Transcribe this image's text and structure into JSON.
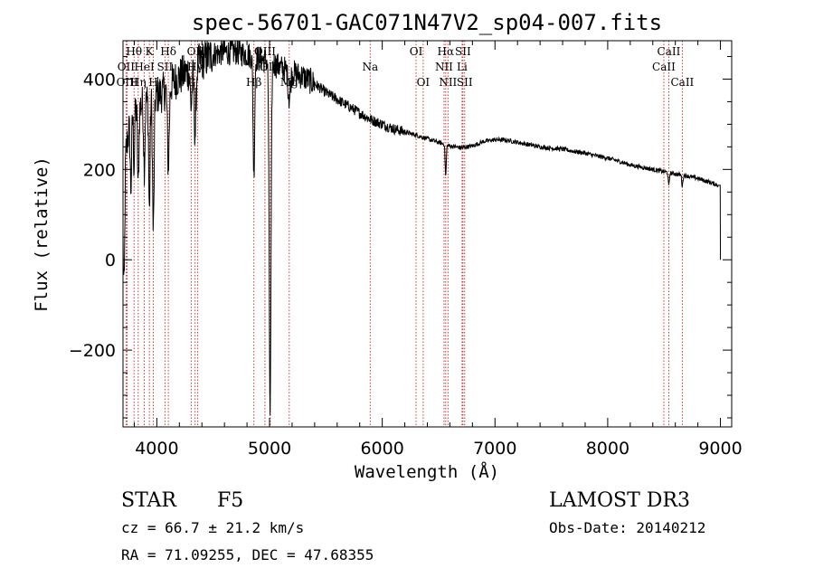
{
  "chart_data": {
    "type": "line",
    "title": "spec-56701-GAC071N47V2_sp04-007.fits",
    "xlabel": "Wavelength (Å)",
    "ylabel": "Flux (relative)",
    "xlim": [
      3700,
      9100
    ],
    "ylim": [
      -370,
      485
    ],
    "xticks": [
      4000,
      5000,
      6000,
      7000,
      8000,
      9000
    ],
    "yticks": [
      -200,
      0,
      200,
      400
    ],
    "minor_x_step": 200,
    "minor_y_step": 50,
    "spectral_lines": [
      {
        "label": "Hθ",
        "wavelength": 3798,
        "row": 0
      },
      {
        "label": "OII",
        "wavelength": 3727,
        "row": 1
      },
      {
        "label": "OIII",
        "wavelength": 3737,
        "row": 2
      },
      {
        "label": "K",
        "wavelength": 3934,
        "row": 0
      },
      {
        "label": "Hη",
        "wavelength": 3835,
        "row": 2
      },
      {
        "label": "HeI",
        "wavelength": 3889,
        "row": 1
      },
      {
        "label": "H",
        "wavelength": 3969,
        "row": 2
      },
      {
        "label": "Hδ",
        "wavelength": 4102,
        "row": 0
      },
      {
        "label": "SII",
        "wavelength": 4072,
        "row": 1
      },
      {
        "label": "OIII",
        "wavelength": 4363,
        "row": 0
      },
      {
        "label": "Hγ",
        "wavelength": 4340,
        "row": 1
      },
      {
        "label": "G",
        "wavelength": 4305,
        "row": 2
      },
      {
        "label": "OIII",
        "wavelength": 4959,
        "row": 0
      },
      {
        "label": "OIII",
        "wavelength": 5007,
        "row": 1
      },
      {
        "label": "Hβ",
        "wavelength": 4861,
        "row": 2
      },
      {
        "label": "Mg",
        "wavelength": 5175,
        "row": 2
      },
      {
        "label": "Na",
        "wavelength": 5893,
        "row": 1
      },
      {
        "label": "OI",
        "wavelength": 6300,
        "row": 0
      },
      {
        "label": "OI",
        "wavelength": 6363,
        "row": 2
      },
      {
        "label": "Hα",
        "wavelength": 6563,
        "row": 0
      },
      {
        "label": "NII",
        "wavelength": 6548,
        "row": 1
      },
      {
        "label": "NII",
        "wavelength": 6583,
        "row": 2
      },
      {
        "label": "SII",
        "wavelength": 6716,
        "row": 0
      },
      {
        "label": "Li",
        "wavelength": 6708,
        "row": 1
      },
      {
        "label": "SII",
        "wavelength": 6731,
        "row": 2
      },
      {
        "label": "CaII",
        "wavelength": 8542,
        "row": 0
      },
      {
        "label": "CaII",
        "wavelength": 8498,
        "row": 1
      },
      {
        "label": "CaII",
        "wavelength": 8662,
        "row": 2
      }
    ],
    "continuum": [
      [
        3700,
        100
      ],
      [
        3720,
        230
      ],
      [
        3760,
        300
      ],
      [
        3800,
        330
      ],
      [
        3850,
        340
      ],
      [
        3900,
        350
      ],
      [
        3950,
        360
      ],
      [
        4000,
        365
      ],
      [
        4050,
        370
      ],
      [
        4100,
        380
      ],
      [
        4150,
        395
      ],
      [
        4200,
        405
      ],
      [
        4300,
        420
      ],
      [
        4400,
        440
      ],
      [
        4500,
        455
      ],
      [
        4600,
        460
      ],
      [
        4700,
        460
      ],
      [
        4800,
        455
      ],
      [
        4900,
        445
      ],
      [
        5000,
        440
      ],
      [
        5100,
        425
      ],
      [
        5200,
        415
      ],
      [
        5300,
        405
      ],
      [
        5400,
        390
      ],
      [
        5500,
        370
      ],
      [
        5600,
        355
      ],
      [
        5700,
        340
      ],
      [
        5800,
        325
      ],
      [
        5900,
        310
      ],
      [
        6000,
        300
      ],
      [
        6100,
        290
      ],
      [
        6200,
        283
      ],
      [
        6300,
        276
      ],
      [
        6400,
        268
      ],
      [
        6500,
        260
      ],
      [
        6600,
        252
      ],
      [
        6700,
        248
      ],
      [
        6800,
        252
      ],
      [
        6900,
        262
      ],
      [
        7000,
        266
      ],
      [
        7100,
        265
      ],
      [
        7200,
        260
      ],
      [
        7300,
        255
      ],
      [
        7400,
        250
      ],
      [
        7500,
        247
      ],
      [
        7600,
        245
      ],
      [
        7700,
        240
      ],
      [
        7800,
        236
      ],
      [
        7900,
        230
      ],
      [
        8000,
        225
      ],
      [
        8100,
        218
      ],
      [
        8200,
        210
      ],
      [
        8300,
        205
      ],
      [
        8400,
        200
      ],
      [
        8500,
        195
      ],
      [
        8600,
        190
      ],
      [
        8700,
        186
      ],
      [
        8800,
        180
      ],
      [
        8900,
        172
      ],
      [
        8980,
        165
      ],
      [
        9000,
        0
      ]
    ],
    "absorption_features": [
      {
        "wavelength": 3710,
        "depth": 230,
        "width": 6
      },
      {
        "wavelength": 3770,
        "depth": 150,
        "width": 6
      },
      {
        "wavelength": 3798,
        "depth": 120,
        "width": 5
      },
      {
        "wavelength": 3835,
        "depth": 180,
        "width": 6
      },
      {
        "wavelength": 3889,
        "depth": 140,
        "width": 6
      },
      {
        "wavelength": 3934,
        "depth": 250,
        "width": 6
      },
      {
        "wavelength": 3969,
        "depth": 300,
        "width": 7
      },
      {
        "wavelength": 4102,
        "depth": 170,
        "width": 8
      },
      {
        "wavelength": 4305,
        "depth": 80,
        "width": 8
      },
      {
        "wavelength": 4340,
        "depth": 150,
        "width": 8
      },
      {
        "wavelength": 4861,
        "depth": 260,
        "width": 7
      },
      {
        "wavelength": 5005,
        "depth": 780,
        "width": 8
      },
      {
        "wavelength": 5175,
        "depth": 60,
        "width": 10
      },
      {
        "wavelength": 6563,
        "depth": 70,
        "width": 5
      },
      {
        "wavelength": 8542,
        "depth": 30,
        "width": 5
      },
      {
        "wavelength": 8662,
        "depth": 25,
        "width": 5
      }
    ],
    "noise": [
      {
        "from": 3700,
        "to": 4500,
        "amplitude": 45
      },
      {
        "from": 4500,
        "to": 5400,
        "amplitude": 30
      },
      {
        "from": 5400,
        "to": 6200,
        "amplitude": 12
      },
      {
        "from": 6200,
        "to": 9000,
        "amplitude": 5
      }
    ]
  },
  "info": {
    "object_class": "STAR",
    "subclass": "F5",
    "survey": "LAMOST DR3",
    "cz": "cz = 66.7 ± 21.2 km/s",
    "obs_date": "Obs-Date: 20140212",
    "coords": "RA =  71.09255, DEC =  47.68355"
  },
  "colors": {
    "spectrum": "#000000",
    "line_marker": "#cc2222",
    "axis": "#000000"
  }
}
